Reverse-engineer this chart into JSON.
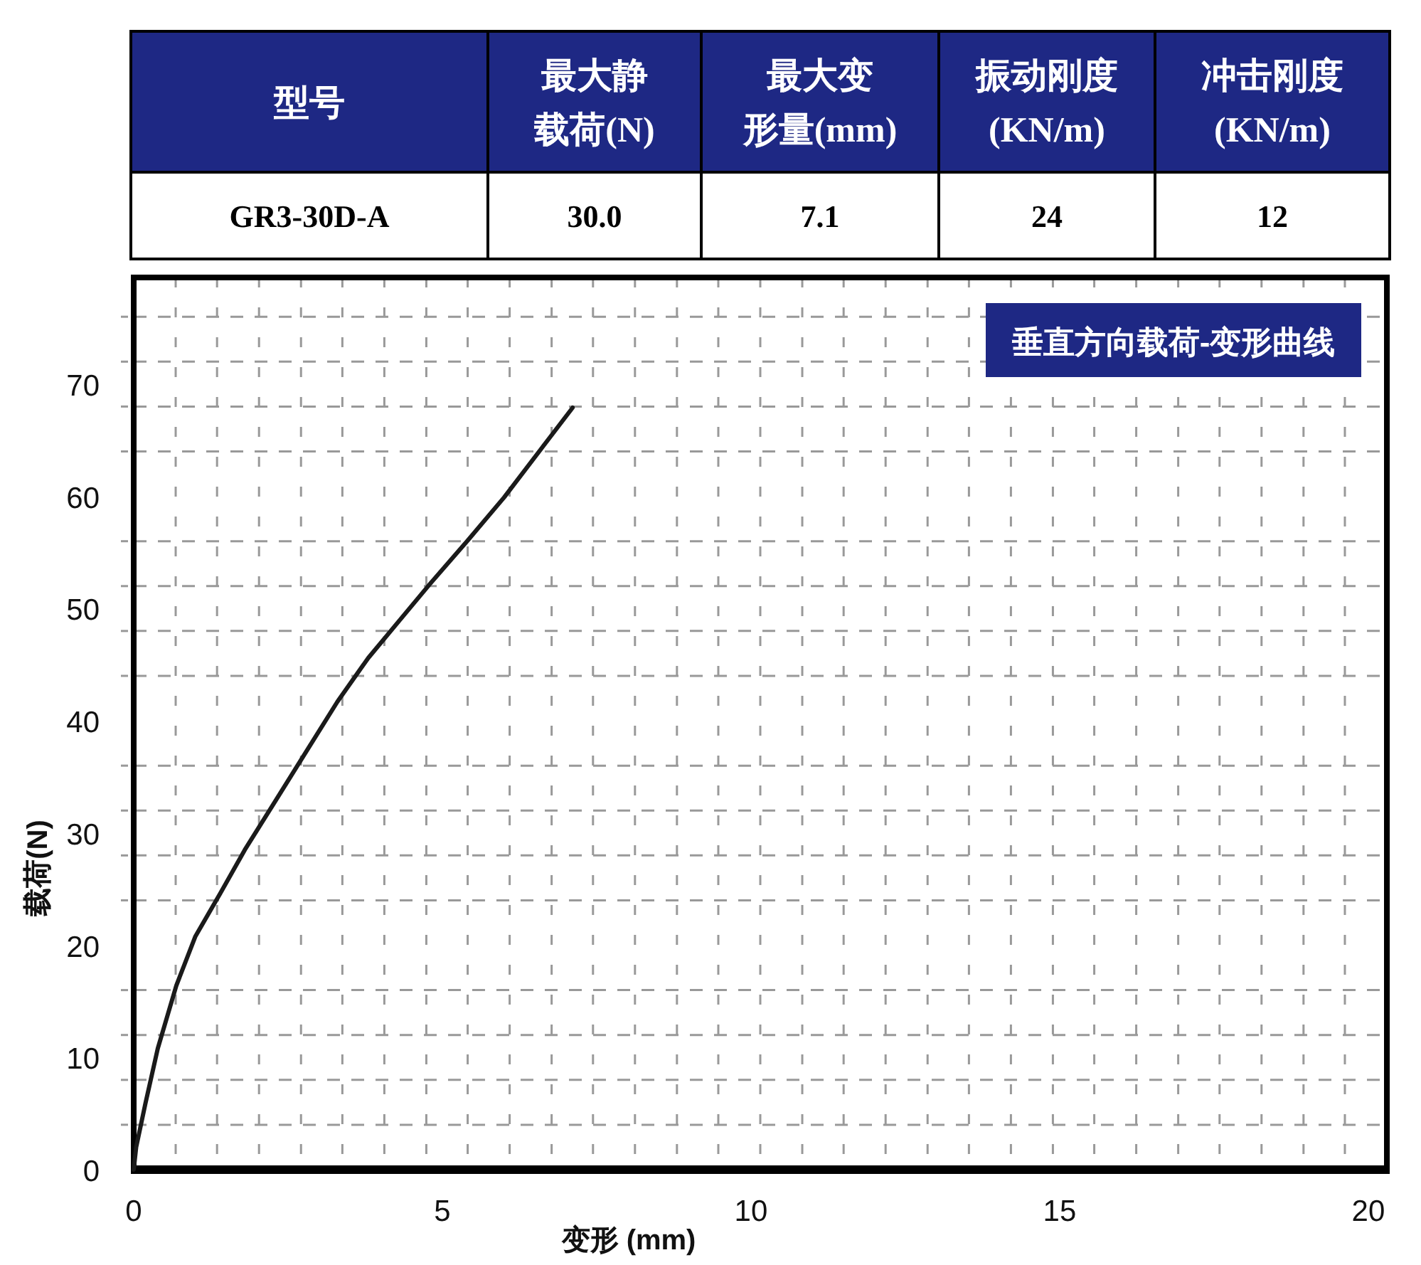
{
  "chart_data": [
    {
      "type": "other",
      "categories": [
        "型号",
        "最大静",
        "最大变",
        "振动刚度",
        "冲击刚度"
      ],
      "annotations": [
        "载荷(N)",
        "形量(mm)",
        "(KN/m)",
        "(KN/m)",
        "GR3-30D-A",
        "30.0",
        "7.1",
        "24",
        "12"
      ]
    },
    {
      "type": "line",
      "title": "垂直方向载荷-变形曲线",
      "xlabel": "变形 (mm)",
      "ylabel": "载荷(N)",
      "x": [
        0,
        0.04,
        0.19,
        0.39,
        0.69,
        1.0,
        1.4,
        1.8,
        2.3,
        2.8,
        3.3,
        3.8,
        4.3,
        4.8,
        5.4,
        6.0,
        6.61,
        7.11
      ],
      "series": [
        {
          "color": "#1a1a1a",
          "values": [
            0,
            2.0,
            5.9,
            10.8,
            16.4,
            20.8,
            24.6,
            28.5,
            32.9,
            37.3,
            41.7,
            45.6,
            48.9,
            52.2,
            56.0,
            59.9,
            64.3,
            67.9
          ]
        }
      ],
      "xlim": [
        0,
        20.3
      ],
      "ylim": [
        0,
        79.5
      ],
      "xticks": [
        0,
        {
          "value": 0.68,
          "label": null
        },
        {
          "value": 1.35,
          "label": null
        },
        {
          "value": 2.03,
          "label": null
        },
        {
          "value": 2.71,
          "label": null
        },
        {
          "value": 3.38,
          "label": null
        },
        {
          "value": 4.06,
          "label": null
        },
        {
          "value": 4.74,
          "label": null
        },
        5,
        {
          "value": 5.41,
          "label": null
        },
        {
          "value": 6.09,
          "label": null
        },
        {
          "value": 6.77,
          "label": null
        },
        {
          "value": 7.44,
          "label": null
        },
        {
          "value": 8.12,
          "label": null
        },
        {
          "value": 8.8,
          "label": null
        },
        {
          "value": 9.47,
          "label": null
        },
        10,
        {
          "value": 10.15,
          "label": null
        },
        {
          "value": 10.83,
          "label": null
        },
        {
          "value": 11.5,
          "label": null
        },
        {
          "value": 12.18,
          "label": null
        },
        {
          "value": 12.86,
          "label": null
        },
        {
          "value": 13.53,
          "label": null
        },
        {
          "value": 14.21,
          "label": null
        },
        {
          "value": 14.89,
          "label": null
        },
        15,
        {
          "value": 15.56,
          "label": null
        },
        {
          "value": 16.24,
          "label": null
        },
        {
          "value": 16.92,
          "label": null
        },
        {
          "value": 17.59,
          "label": null
        },
        {
          "value": 18.27,
          "label": null
        },
        {
          "value": 18.95,
          "label": null
        },
        {
          "value": 19.62,
          "label": null
        },
        20
      ],
      "yticks": [
        0,
        {
          "value": 4,
          "label": null
        },
        {
          "value": 8,
          "label": null
        },
        10,
        {
          "value": 12,
          "label": null
        },
        {
          "value": 16,
          "label": null
        },
        20,
        {
          "value": 24,
          "label": null
        },
        {
          "value": 28,
          "label": null
        },
        30,
        {
          "value": 32,
          "label": null
        },
        {
          "value": 36,
          "label": null
        },
        40,
        {
          "value": 44,
          "label": null
        },
        {
          "value": 48,
          "label": null
        },
        50,
        {
          "value": 52,
          "label": null
        },
        {
          "value": 56,
          "label": null
        },
        60,
        {
          "value": 64,
          "label": null
        },
        {
          "value": 68,
          "label": null
        },
        70,
        {
          "value": 72,
          "label": null
        },
        {
          "value": 76,
          "label": null
        }
      ],
      "grid": true,
      "line_style": "solid",
      "marker": "none"
    }
  ]
}
